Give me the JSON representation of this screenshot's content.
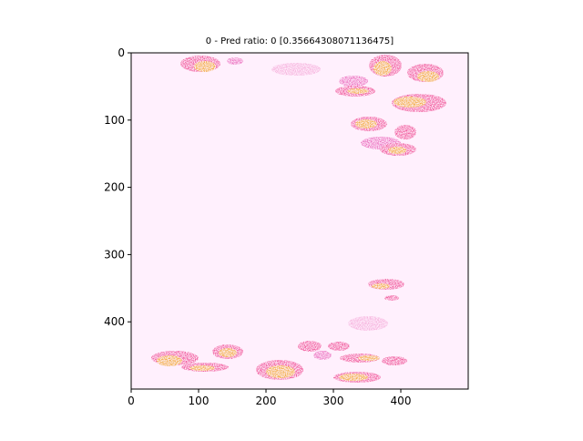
{
  "figure": {
    "title": "0 - Pred ratio: 0 [0.35664308071136475]"
  },
  "axes": {
    "x_ticks": [
      "0",
      "100",
      "200",
      "300",
      "400"
    ],
    "y_ticks": [
      "0",
      "100",
      "200",
      "300",
      "400"
    ],
    "x_range": [
      0,
      500
    ],
    "y_range": [
      0,
      500
    ],
    "y_inverted": true
  },
  "image": {
    "background_color": "#fff0fd",
    "colors": {
      "pink": "#e85bb5",
      "hot_pink": "#ee3f8a",
      "orange": "#f0a020",
      "light_pink": "#f5a8d8"
    }
  }
}
